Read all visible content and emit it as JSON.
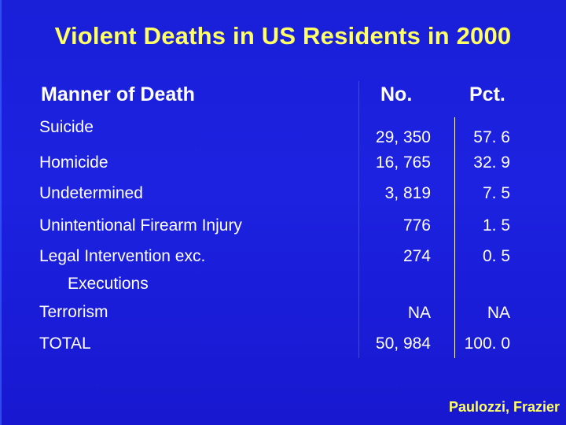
{
  "slide": {
    "title": "Violent Deaths in US Residents in 2000",
    "credit": "Paulozzi, Frazier",
    "colors": {
      "background": "#1c22e0",
      "title": "#ffff66",
      "text": "#ffffff"
    }
  },
  "table": {
    "headers": {
      "manner": "Manner of Death",
      "no": "No.",
      "pct": "Pct."
    },
    "rows": [
      {
        "label": "Suicide",
        "no": "29, 350",
        "pct": "57. 6"
      },
      {
        "label": "Homicide",
        "no": "16, 765",
        "pct": "32. 9"
      },
      {
        "label": "Undetermined",
        "no": "3, 819",
        "pct": "7. 5"
      },
      {
        "label": "Unintentional Firearm Injury",
        "no": "776",
        "pct": "1. 5"
      },
      {
        "label": "Legal Intervention exc.",
        "label_cont": "Executions",
        "no": "274",
        "pct": "0. 5"
      },
      {
        "label": "Terrorism",
        "no": "NA",
        "pct": "NA"
      },
      {
        "label": "TOTAL",
        "no": "50, 984",
        "pct": "100. 0"
      }
    ]
  }
}
